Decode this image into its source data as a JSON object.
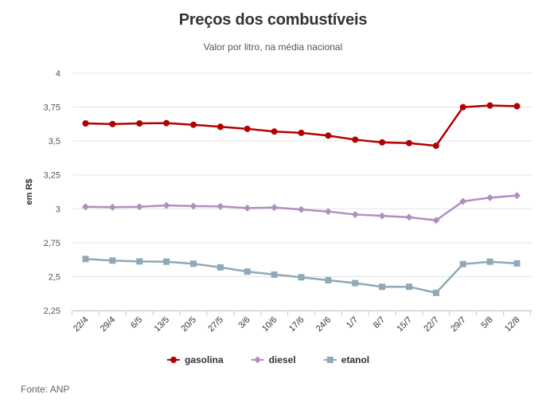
{
  "chart_data": {
    "type": "line",
    "title": "Preços dos combustíveis",
    "subtitle": "Valor por litro, na média nacional",
    "ylabel": "em R$",
    "xlabel": "",
    "ylim": [
      2.25,
      4
    ],
    "yticks": [
      2.25,
      2.5,
      2.75,
      3,
      3.25,
      3.5,
      3.75,
      4
    ],
    "ytick_labels": [
      "2,25",
      "2,5",
      "2,75",
      "3",
      "3,25",
      "3,5",
      "3,75",
      "4"
    ],
    "categories": [
      "22/4",
      "29/4",
      "6/5",
      "13/5",
      "20/5",
      "27/5",
      "3/6",
      "10/6",
      "17/6",
      "24/6",
      "1/7",
      "8/7",
      "15/7",
      "22/7",
      "29/7",
      "5/8",
      "12/8"
    ],
    "grid": true,
    "legend_position": "bottom",
    "series": [
      {
        "name": "gasolina",
        "color": "#b30000",
        "marker": "circle",
        "values": [
          3.63,
          3.625,
          3.63,
          3.632,
          3.62,
          3.605,
          3.59,
          3.57,
          3.56,
          3.54,
          3.51,
          3.49,
          3.485,
          3.465,
          3.75,
          3.762,
          3.757
        ]
      },
      {
        "name": "diesel",
        "color": "#b08fc0",
        "marker": "diamond",
        "values": [
          3.015,
          3.012,
          3.015,
          3.025,
          3.02,
          3.018,
          3.005,
          3.01,
          2.995,
          2.98,
          2.958,
          2.948,
          2.938,
          2.915,
          3.055,
          3.082,
          3.098
        ]
      },
      {
        "name": "etanol",
        "color": "#8fa9b8",
        "marker": "square",
        "values": [
          2.63,
          2.618,
          2.612,
          2.61,
          2.595,
          2.568,
          2.537,
          2.515,
          2.495,
          2.473,
          2.452,
          2.425,
          2.425,
          2.38,
          2.592,
          2.61,
          2.597
        ]
      }
    ],
    "source": "Fonte: ANP"
  }
}
